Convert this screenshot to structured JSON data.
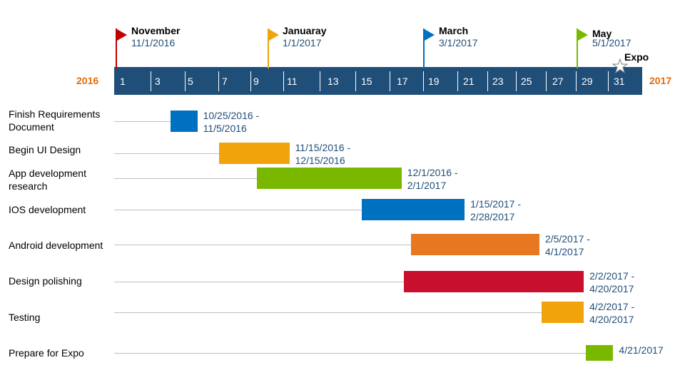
{
  "chart_data": {
    "type": "gantt",
    "scale": {
      "start_year": "2016",
      "end_year": "2017",
      "ticks": [
        "1",
        "3",
        "5",
        "7",
        "9",
        "11",
        "13",
        "15",
        "17",
        "19",
        "21",
        "23",
        "25",
        "27",
        "29",
        "31"
      ],
      "colors": {
        "bar": "#1f4e79",
        "tick_text": "#ffffff",
        "year_text": "#e46c0a"
      }
    },
    "milestones": [
      {
        "name": "November",
        "date": "11/1/2016",
        "color": "#c00000"
      },
      {
        "name": "Januaray",
        "date": "1/1/2017",
        "color": "#f0a30a"
      },
      {
        "name": "March",
        "date": "3/1/2017",
        "color": "#0070c0"
      },
      {
        "name": "May",
        "date": "5/1/2017",
        "color": "#7ab800"
      },
      {
        "name": "Expo",
        "date": "",
        "icon": "star-icon",
        "color": "#ffffff"
      }
    ],
    "tasks": [
      {
        "name": "Finish Requirements Document",
        "range_line1": "10/25/2016 -",
        "range_line2": "11/5/2016",
        "start": "2016-10-25",
        "end": "2016-11-05",
        "color": "#0070c0"
      },
      {
        "name": "Begin UI Design",
        "range_line1": "11/15/2016 -",
        "range_line2": "12/15/2016",
        "start": "2016-11-15",
        "end": "2016-12-15",
        "color": "#f0a30a"
      },
      {
        "name": "App development research",
        "range_line1": "12/1/2016 -",
        "range_line2": "2/1/2017",
        "start": "2016-12-01",
        "end": "2017-02-01",
        "color": "#7ab800"
      },
      {
        "name": "IOS development",
        "range_line1": "1/15/2017 -",
        "range_line2": "2/28/2017",
        "start": "2017-01-15",
        "end": "2017-02-28",
        "color": "#0070c0"
      },
      {
        "name": "Android development",
        "range_line1": "2/5/2017 -",
        "range_line2": "4/1/2017",
        "start": "2017-02-05",
        "end": "2017-04-01",
        "color": "#e87722"
      },
      {
        "name": "Design polishing",
        "range_line1": "2/2/2017 -",
        "range_line2": "4/20/2017",
        "start": "2017-02-02",
        "end": "2017-04-20",
        "color": "#c8102e"
      },
      {
        "name": "Testing",
        "range_line1": "4/2/2017 -",
        "range_line2": "4/20/2017",
        "start": "2017-04-02",
        "end": "2017-04-20",
        "color": "#f0a30a"
      },
      {
        "name": "Prepare for Expo",
        "range_line1": "4/21/2017",
        "range_line2": "",
        "start": "2017-04-21",
        "end": "2017-04-21",
        "color": "#7ab800"
      }
    ]
  }
}
